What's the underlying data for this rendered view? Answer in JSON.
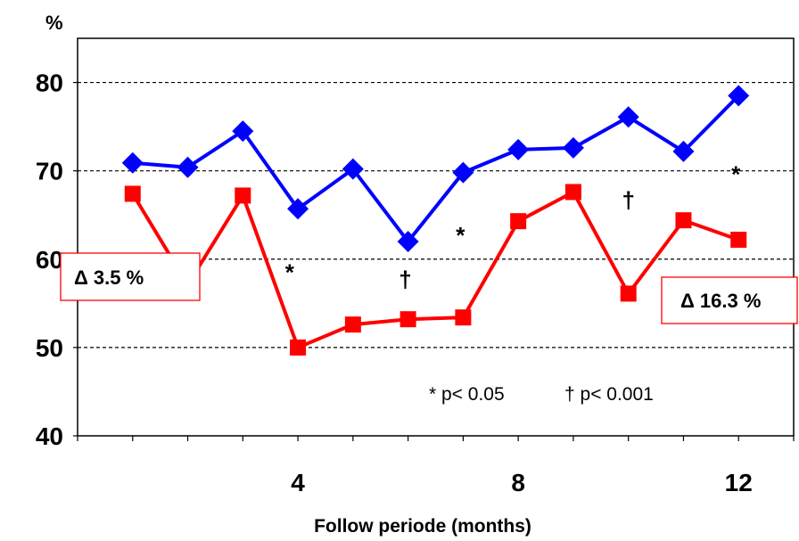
{
  "chart_data": {
    "type": "line",
    "title": "",
    "ylabel": "%",
    "xlabel": "Follow periode (months)",
    "x": [
      1,
      2,
      3,
      4,
      5,
      6,
      7,
      8,
      9,
      10,
      11,
      12
    ],
    "xlim": [
      0,
      13
    ],
    "ylim": [
      40,
      85
    ],
    "xticks_labeled": [
      4,
      8,
      12
    ],
    "yticks": [
      40,
      50,
      60,
      70,
      80
    ],
    "grid": "dashed horizontal at 50, 60, 70, 80",
    "series": [
      {
        "color": "#0000ff",
        "marker": "diamond",
        "values": [
          70.9,
          70.4,
          74.5,
          65.7,
          70.2,
          62.0,
          69.8,
          72.4,
          72.6,
          76.1,
          72.2,
          78.5
        ]
      },
      {
        "color": "#ff0000",
        "marker": "square",
        "values": [
          67.4,
          57.1,
          67.2,
          50.0,
          52.6,
          53.2,
          53.4,
          64.3,
          67.6,
          56.1,
          64.4,
          62.2
        ]
      }
    ],
    "significance_markers": [
      {
        "x": 3.85,
        "y": 58.6,
        "symbol": "*"
      },
      {
        "x": 5.95,
        "y": 57.8,
        "symbol": "†"
      },
      {
        "x": 6.95,
        "y": 62.8,
        "symbol": "*"
      },
      {
        "x": 10.0,
        "y": 66.8,
        "symbol": "†"
      },
      {
        "x": 11.95,
        "y": 69.7,
        "symbol": "*"
      }
    ],
    "annotations": [
      {
        "text": "Δ 3.5 %",
        "near": "left"
      },
      {
        "text": "Δ 16.3 %",
        "near": "right"
      }
    ],
    "legend_note": {
      "asterisk": "* p< 0.05",
      "dagger": "† p< 0.001"
    }
  }
}
